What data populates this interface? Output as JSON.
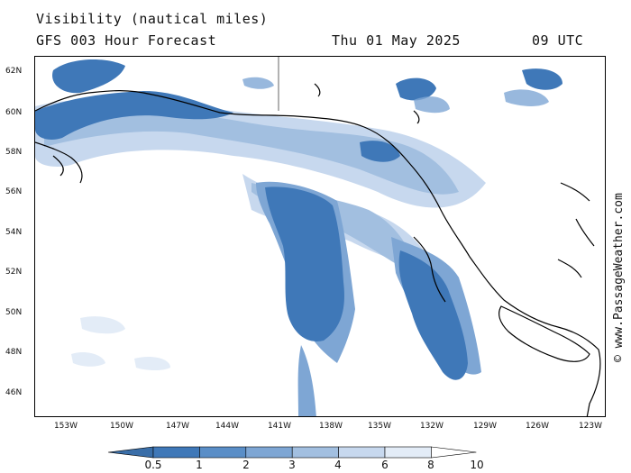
{
  "header": {
    "title": "Visibility (nautical miles)",
    "model": "GFS 003 Hour Forecast",
    "date": "Thu 01 May 2025",
    "time": "09 UTC"
  },
  "axes": {
    "latitude_labels": [
      "62N",
      "60N",
      "58N",
      "56N",
      "54N",
      "52N",
      "50N",
      "48N",
      "46N"
    ],
    "longitude_labels": [
      "153W",
      "150W",
      "147W",
      "144W",
      "141W",
      "138W",
      "135W",
      "132W",
      "129W",
      "126W",
      "123W"
    ]
  },
  "legend": {
    "labels": [
      "0.5",
      "1",
      "2",
      "3",
      "4",
      "6",
      "8",
      "10"
    ],
    "colors": [
      "#3a6ea8",
      "#3f78b8",
      "#5a8ec7",
      "#7ea6d4",
      "#a2bfe0",
      "#c7d8ee",
      "#e3ecf7",
      "#ffffff"
    ]
  },
  "credit": "© www.PassageWeather.com"
}
